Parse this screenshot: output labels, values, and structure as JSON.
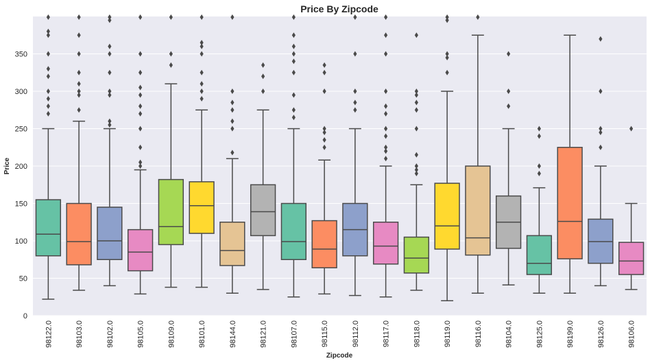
{
  "chart_data": {
    "type": "box",
    "title": "Price By Zipcode",
    "xlabel": "Zipcode",
    "ylabel": "Price",
    "ylim": [
      0,
      400
    ],
    "yticks": [
      0,
      50,
      100,
      150,
      200,
      250,
      300,
      350
    ],
    "grid": true,
    "categories": [
      "98122.0",
      "98103.0",
      "98102.0",
      "98105.0",
      "98109.0",
      "98101.0",
      "98144.0",
      "98121.0",
      "98107.0",
      "98115.0",
      "98112.0",
      "98117.0",
      "98118.0",
      "98119.0",
      "98116.0",
      "98104.0",
      "98125.0",
      "98199.0",
      "98126.0",
      "98106.0"
    ],
    "colors": [
      "#66c2a5",
      "#fc8d62",
      "#8da0cb",
      "#e78ac3",
      "#a6d854",
      "#ffd92f",
      "#e5c494",
      "#b3b3b3",
      "#66c2a5",
      "#fc8d62",
      "#8da0cb",
      "#e78ac3",
      "#a6d854",
      "#ffd92f",
      "#e5c494",
      "#b3b3b3",
      "#66c2a5",
      "#fc8d62",
      "#8da0cb",
      "#e78ac3"
    ],
    "boxes": [
      {
        "whislo": 22,
        "q1": 80,
        "med": 109,
        "q3": 155,
        "whishi": 250,
        "fliers": [
          270,
          280,
          290,
          300,
          320,
          330,
          350,
          375,
          380,
          400
        ]
      },
      {
        "whislo": 34,
        "q1": 68,
        "med": 99,
        "q3": 150,
        "whishi": 260,
        "fliers": [
          275,
          295,
          300,
          310,
          325,
          350,
          375,
          400
        ]
      },
      {
        "whislo": 40,
        "q1": 75,
        "med": 100,
        "q3": 145,
        "whishi": 250,
        "fliers": [
          255,
          260,
          295,
          300,
          325,
          350,
          360,
          395,
          400
        ]
      },
      {
        "whislo": 29,
        "q1": 60,
        "med": 85,
        "q3": 115,
        "whishi": 195,
        "fliers": [
          200,
          205,
          225,
          250,
          270,
          280,
          295,
          305,
          325,
          350,
          400
        ]
      },
      {
        "whislo": 38,
        "q1": 95,
        "med": 119,
        "q3": 182,
        "whishi": 310,
        "fliers": [
          335,
          350,
          400
        ]
      },
      {
        "whislo": 38,
        "q1": 110,
        "med": 147,
        "q3": 179,
        "whishi": 275,
        "fliers": [
          290,
          300,
          310,
          325,
          350,
          360,
          365,
          400
        ]
      },
      {
        "whislo": 30,
        "q1": 67,
        "med": 87,
        "q3": 125,
        "whishi": 210,
        "fliers": [
          218,
          250,
          260,
          275,
          285,
          300,
          400
        ]
      },
      {
        "whislo": 35,
        "q1": 107,
        "med": 139,
        "q3": 175,
        "whishi": 275,
        "fliers": [
          300,
          320,
          335
        ]
      },
      {
        "whislo": 25,
        "q1": 75,
        "med": 99,
        "q3": 150,
        "whishi": 250,
        "fliers": [
          265,
          275,
          295,
          325,
          340,
          350,
          360,
          375,
          400
        ]
      },
      {
        "whislo": 29,
        "q1": 64,
        "med": 89,
        "q3": 127,
        "whishi": 208,
        "fliers": [
          225,
          235,
          245,
          250,
          300,
          325,
          335
        ]
      },
      {
        "whislo": 27,
        "q1": 80,
        "med": 115,
        "q3": 150,
        "whishi": 250,
        "fliers": [
          275,
          285,
          300,
          350,
          400
        ]
      },
      {
        "whislo": 25,
        "q1": 69,
        "med": 93,
        "q3": 125,
        "whishi": 200,
        "fliers": [
          210,
          220,
          225,
          240,
          250,
          270,
          280,
          300,
          350,
          375,
          400
        ]
      },
      {
        "whislo": 34,
        "q1": 57,
        "med": 77,
        "q3": 105,
        "whishi": 175,
        "fliers": [
          190,
          195,
          200,
          215,
          250,
          275,
          285,
          295,
          300,
          375
        ]
      },
      {
        "whislo": 20,
        "q1": 89,
        "med": 120,
        "q3": 177,
        "whishi": 300,
        "fliers": [
          325,
          345,
          350,
          395,
          400
        ]
      },
      {
        "whislo": 30,
        "q1": 81,
        "med": 104,
        "q3": 200,
        "whishi": 375,
        "fliers": [
          400
        ]
      },
      {
        "whislo": 41,
        "q1": 90,
        "med": 125,
        "q3": 160,
        "whishi": 250,
        "fliers": [
          280,
          300,
          350
        ]
      },
      {
        "whislo": 30,
        "q1": 55,
        "med": 70,
        "q3": 107,
        "whishi": 171,
        "fliers": [
          190,
          200,
          240,
          250
        ]
      },
      {
        "whislo": 30,
        "q1": 76,
        "med": 126,
        "q3": 225,
        "whishi": 375,
        "fliers": []
      },
      {
        "whislo": 40,
        "q1": 70,
        "med": 99,
        "q3": 129,
        "whishi": 200,
        "fliers": [
          225,
          245,
          250,
          300,
          370
        ]
      },
      {
        "whislo": 35,
        "q1": 55,
        "med": 73,
        "q3": 98,
        "whishi": 150,
        "fliers": [
          250
        ]
      }
    ]
  }
}
